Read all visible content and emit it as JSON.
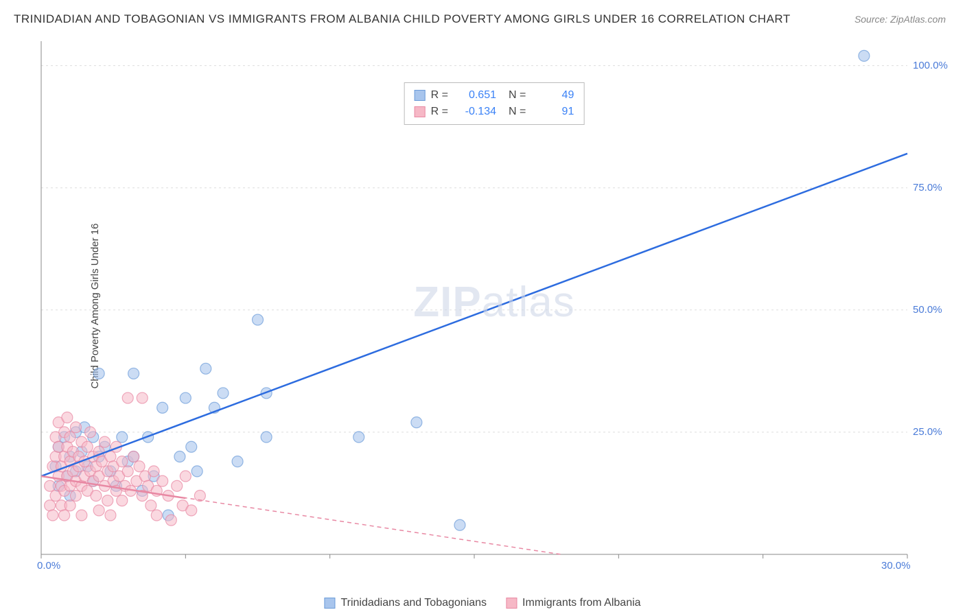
{
  "title": "TRINIDADIAN AND TOBAGONIAN VS IMMIGRANTS FROM ALBANIA CHILD POVERTY AMONG GIRLS UNDER 16 CORRELATION CHART",
  "source": "Source: ZipAtlas.com",
  "y_axis_label": "Child Poverty Among Girls Under 16",
  "watermark": "ZIPatlas",
  "chart": {
    "type": "scatter",
    "xlim": [
      0,
      30
    ],
    "ylim": [
      0,
      105
    ],
    "x_tick_positions": [
      0,
      5,
      10,
      15,
      20,
      25,
      30
    ],
    "x_tick_labels": {
      "0": "0.0%",
      "30": "30.0%"
    },
    "y_tick_positions": [
      25,
      50,
      75,
      100
    ],
    "y_tick_labels": {
      "25": "25.0%",
      "50": "50.0%",
      "75": "75.0%",
      "100": "100.0%"
    },
    "grid_color": "#dddddd",
    "axis_color": "#888888",
    "background": "#ffffff",
    "tick_label_color": "#4a7bd8"
  },
  "series": [
    {
      "name": "Trinidadians and Tobagonians",
      "r_value": "0.651",
      "n_value": "49",
      "marker_fill": "#a8c5ed",
      "marker_stroke": "#6b9bd8",
      "marker_opacity": 0.6,
      "marker_radius": 8,
      "line_color": "#2d6cdf",
      "line_width": 2.5,
      "line_dash": "none",
      "regression": {
        "x1": 0,
        "y1": 16,
        "x2": 30,
        "y2": 82
      },
      "points": [
        [
          0.5,
          18
        ],
        [
          0.6,
          22
        ],
        [
          0.6,
          14
        ],
        [
          0.8,
          24
        ],
        [
          0.9,
          16
        ],
        [
          1.0,
          20
        ],
        [
          1.0,
          12
        ],
        [
          1.2,
          25
        ],
        [
          1.2,
          17
        ],
        [
          1.4,
          21
        ],
        [
          1.5,
          26
        ],
        [
          1.6,
          18
        ],
        [
          1.8,
          24
        ],
        [
          1.8,
          15
        ],
        [
          2.0,
          37
        ],
        [
          2.0,
          20
        ],
        [
          2.2,
          22
        ],
        [
          2.4,
          17
        ],
        [
          2.6,
          14
        ],
        [
          2.8,
          24
        ],
        [
          3.0,
          19
        ],
        [
          3.2,
          37
        ],
        [
          3.2,
          20
        ],
        [
          3.5,
          13
        ],
        [
          3.7,
          24
        ],
        [
          3.9,
          16
        ],
        [
          4.2,
          30
        ],
        [
          4.4,
          8
        ],
        [
          4.8,
          20
        ],
        [
          5.0,
          32
        ],
        [
          5.2,
          22
        ],
        [
          5.4,
          17
        ],
        [
          5.7,
          38
        ],
        [
          6.0,
          30
        ],
        [
          6.3,
          33
        ],
        [
          6.8,
          19
        ],
        [
          7.5,
          48
        ],
        [
          7.8,
          33
        ],
        [
          7.8,
          24
        ],
        [
          11.0,
          24
        ],
        [
          13.0,
          27
        ],
        [
          14.5,
          6
        ],
        [
          28.5,
          102
        ]
      ]
    },
    {
      "name": "Immigrants from Albania",
      "r_value": "-0.134",
      "n_value": "91",
      "marker_fill": "#f6b8c6",
      "marker_stroke": "#e888a3",
      "marker_opacity": 0.55,
      "marker_radius": 8,
      "line_color": "#e888a3",
      "line_width": 1.5,
      "line_dash": "6,5",
      "regression": {
        "x1": 0,
        "y1": 16,
        "x2": 18,
        "y2": 0
      },
      "solid_segment": {
        "x1": 0,
        "y1": 16,
        "x2": 5,
        "y2": 11.5
      },
      "points": [
        [
          0.3,
          10
        ],
        [
          0.3,
          14
        ],
        [
          0.4,
          18
        ],
        [
          0.4,
          8
        ],
        [
          0.5,
          12
        ],
        [
          0.5,
          20
        ],
        [
          0.5,
          24
        ],
        [
          0.6,
          16
        ],
        [
          0.6,
          22
        ],
        [
          0.6,
          27
        ],
        [
          0.7,
          14
        ],
        [
          0.7,
          18
        ],
        [
          0.7,
          10
        ],
        [
          0.8,
          25
        ],
        [
          0.8,
          20
        ],
        [
          0.8,
          13
        ],
        [
          0.8,
          8
        ],
        [
          0.9,
          22
        ],
        [
          0.9,
          16
        ],
        [
          0.9,
          28
        ],
        [
          1.0,
          19
        ],
        [
          1.0,
          14
        ],
        [
          1.0,
          24
        ],
        [
          1.0,
          10
        ],
        [
          1.1,
          17
        ],
        [
          1.1,
          21
        ],
        [
          1.2,
          15
        ],
        [
          1.2,
          26
        ],
        [
          1.2,
          12
        ],
        [
          1.3,
          20
        ],
        [
          1.3,
          18
        ],
        [
          1.4,
          23
        ],
        [
          1.4,
          14
        ],
        [
          1.4,
          8
        ],
        [
          1.5,
          19
        ],
        [
          1.5,
          16
        ],
        [
          1.6,
          22
        ],
        [
          1.6,
          13
        ],
        [
          1.7,
          17
        ],
        [
          1.7,
          25
        ],
        [
          1.8,
          15
        ],
        [
          1.8,
          20
        ],
        [
          1.9,
          18
        ],
        [
          1.9,
          12
        ],
        [
          2.0,
          21
        ],
        [
          2.0,
          16
        ],
        [
          2.0,
          9
        ],
        [
          2.1,
          19
        ],
        [
          2.2,
          14
        ],
        [
          2.2,
          23
        ],
        [
          2.3,
          17
        ],
        [
          2.3,
          11
        ],
        [
          2.4,
          20
        ],
        [
          2.4,
          8
        ],
        [
          2.5,
          15
        ],
        [
          2.5,
          18
        ],
        [
          2.6,
          13
        ],
        [
          2.6,
          22
        ],
        [
          2.7,
          16
        ],
        [
          2.8,
          19
        ],
        [
          2.8,
          11
        ],
        [
          2.9,
          14
        ],
        [
          3.0,
          17
        ],
        [
          3.0,
          32
        ],
        [
          3.1,
          13
        ],
        [
          3.2,
          20
        ],
        [
          3.3,
          15
        ],
        [
          3.4,
          18
        ],
        [
          3.5,
          32
        ],
        [
          3.5,
          12
        ],
        [
          3.6,
          16
        ],
        [
          3.7,
          14
        ],
        [
          3.8,
          10
        ],
        [
          3.9,
          17
        ],
        [
          4.0,
          13
        ],
        [
          4.0,
          8
        ],
        [
          4.2,
          15
        ],
        [
          4.4,
          12
        ],
        [
          4.5,
          7
        ],
        [
          4.7,
          14
        ],
        [
          4.9,
          10
        ],
        [
          5.0,
          16
        ],
        [
          5.2,
          9
        ],
        [
          5.5,
          12
        ]
      ]
    }
  ],
  "stats_box": {
    "r_label": "R =",
    "n_label": "N ="
  },
  "legend_bottom": {
    "series1_label": "Trinidadians and Tobagonians",
    "series2_label": "Immigrants from Albania"
  }
}
